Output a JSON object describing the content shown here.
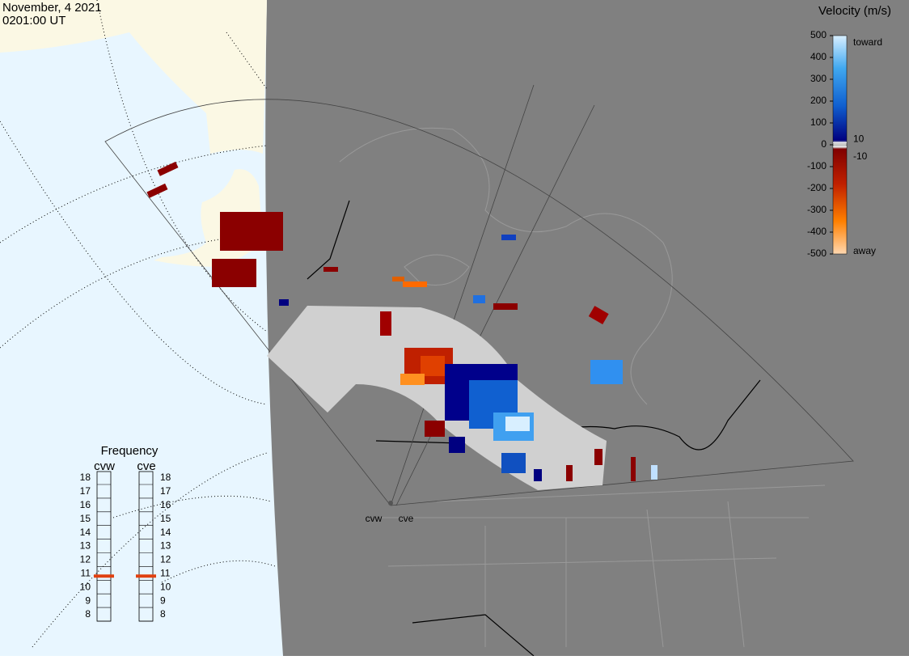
{
  "header": {
    "date": "November, 4 2021",
    "time": "0201:00 UT"
  },
  "velocity_scale": {
    "title": "Velocity (m/s)",
    "range": [
      -500,
      500
    ],
    "ticks": [
      500,
      400,
      300,
      200,
      100,
      0,
      -100,
      -200,
      -300,
      -400,
      -500
    ],
    "threshold_ticks": [
      10,
      -10
    ],
    "toward_label": "toward",
    "away_label": "away"
  },
  "frequency": {
    "title": "Frequency",
    "range": [
      8,
      18
    ],
    "ticks": [
      18,
      17,
      16,
      15,
      14,
      13,
      12,
      11,
      10,
      9,
      8
    ],
    "radars": [
      {
        "name": "cvw",
        "value": 11
      },
      {
        "name": "cve",
        "value": 11
      }
    ]
  },
  "stations": [
    "cvw",
    "cve"
  ]
}
